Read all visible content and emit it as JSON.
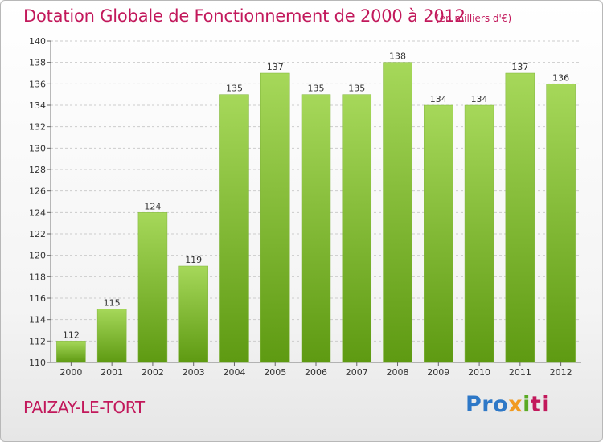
{
  "header": {
    "title": "Dotation Globale de Fonctionnement de 2000 à 2012",
    "unit": "(en milliers d'€)"
  },
  "footer": {
    "commune": "PAIZAY-LE-TORT",
    "logo": [
      "Pro",
      "x",
      "i",
      "ti"
    ]
  },
  "colors": {
    "title": "#c2185b",
    "bar_light": "#a6d85a",
    "bar_dark": "#5e9a12",
    "grid": "#cccccc"
  },
  "chart_data": {
    "type": "bar",
    "categories": [
      "2000",
      "2001",
      "2002",
      "2003",
      "2004",
      "2005",
      "2006",
      "2007",
      "2008",
      "2009",
      "2010",
      "2011",
      "2012"
    ],
    "values": [
      112,
      115,
      124,
      119,
      135,
      137,
      135,
      135,
      138,
      134,
      134,
      137,
      136
    ],
    "ylim": [
      110,
      140
    ],
    "yticks": [
      110,
      112,
      114,
      116,
      118,
      120,
      122,
      124,
      126,
      128,
      130,
      132,
      134,
      136,
      138,
      140
    ],
    "grid": true,
    "data_labels": true
  }
}
